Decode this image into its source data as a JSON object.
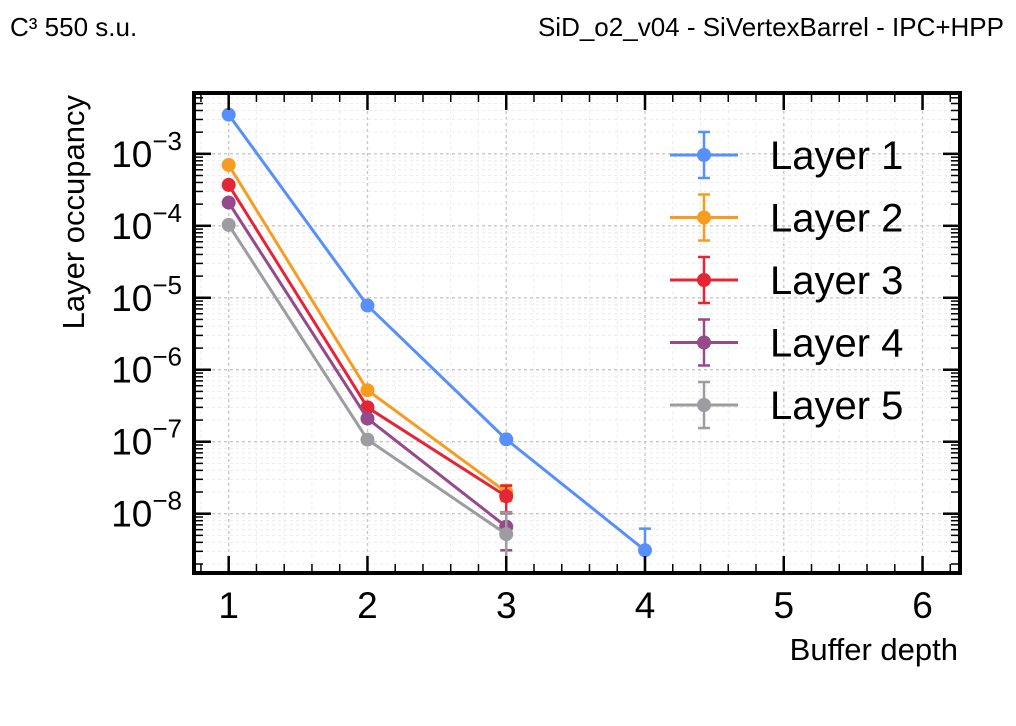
{
  "header": {
    "left": "C³ 550 s.u.",
    "right": "SiD_o2_v04 - SiVertexBarrel - IPC+HPP"
  },
  "chart_data": {
    "type": "line",
    "xlabel": "Buffer depth",
    "ylabel": "Layer occupancy",
    "xlim": [
      0.75,
      6.27
    ],
    "ylim": [
      1.5e-09,
      0.007
    ],
    "yscale": "log",
    "x_ticks": [
      "1",
      "2",
      "3",
      "4",
      "5",
      "6"
    ],
    "y_ticks": [
      {
        "base": "10",
        "exp": "−3",
        "value": 0.001
      },
      {
        "base": "10",
        "exp": "−4",
        "value": 0.0001
      },
      {
        "base": "10",
        "exp": "−5",
        "value": 1e-05
      },
      {
        "base": "10",
        "exp": "−6",
        "value": 1e-06
      },
      {
        "base": "10",
        "exp": "−7",
        "value": 1e-07
      },
      {
        "base": "10",
        "exp": "−8",
        "value": 1e-08
      }
    ],
    "grid": true,
    "legend_position": "top-right",
    "series": [
      {
        "name": "Layer 1",
        "color": "#5790fc",
        "x": [
          1,
          2,
          3,
          4
        ],
        "y": [
          0.0035,
          7.8e-06,
          1.08e-07,
          3.1e-09
        ],
        "yerr": [
          0,
          0,
          0,
          3.1e-09
        ]
      },
      {
        "name": "Layer 2",
        "color": "#f89c20",
        "x": [
          1,
          2,
          3
        ],
        "y": [
          0.0007,
          5.2e-07,
          2e-08
        ],
        "yerr": [
          0,
          0,
          5e-09
        ]
      },
      {
        "name": "Layer 3",
        "color": "#e42536",
        "x": [
          1,
          2,
          3
        ],
        "y": [
          0.00037,
          3e-07,
          1.75e-08
        ],
        "yerr": [
          0,
          0,
          7e-09
        ]
      },
      {
        "name": "Layer 4",
        "color": "#964a8b",
        "x": [
          1,
          2,
          3
        ],
        "y": [
          0.00021,
          2.1e-07,
          6.6e-09
        ],
        "yerr": [
          0,
          0,
          3.5e-09
        ]
      },
      {
        "name": "Layer 5",
        "color": "#9c9ca1",
        "x": [
          1,
          2,
          3
        ],
        "y": [
          0.000103,
          1.07e-07,
          5.2e-09
        ],
        "yerr": [
          0,
          0,
          5.2e-09
        ]
      }
    ]
  }
}
